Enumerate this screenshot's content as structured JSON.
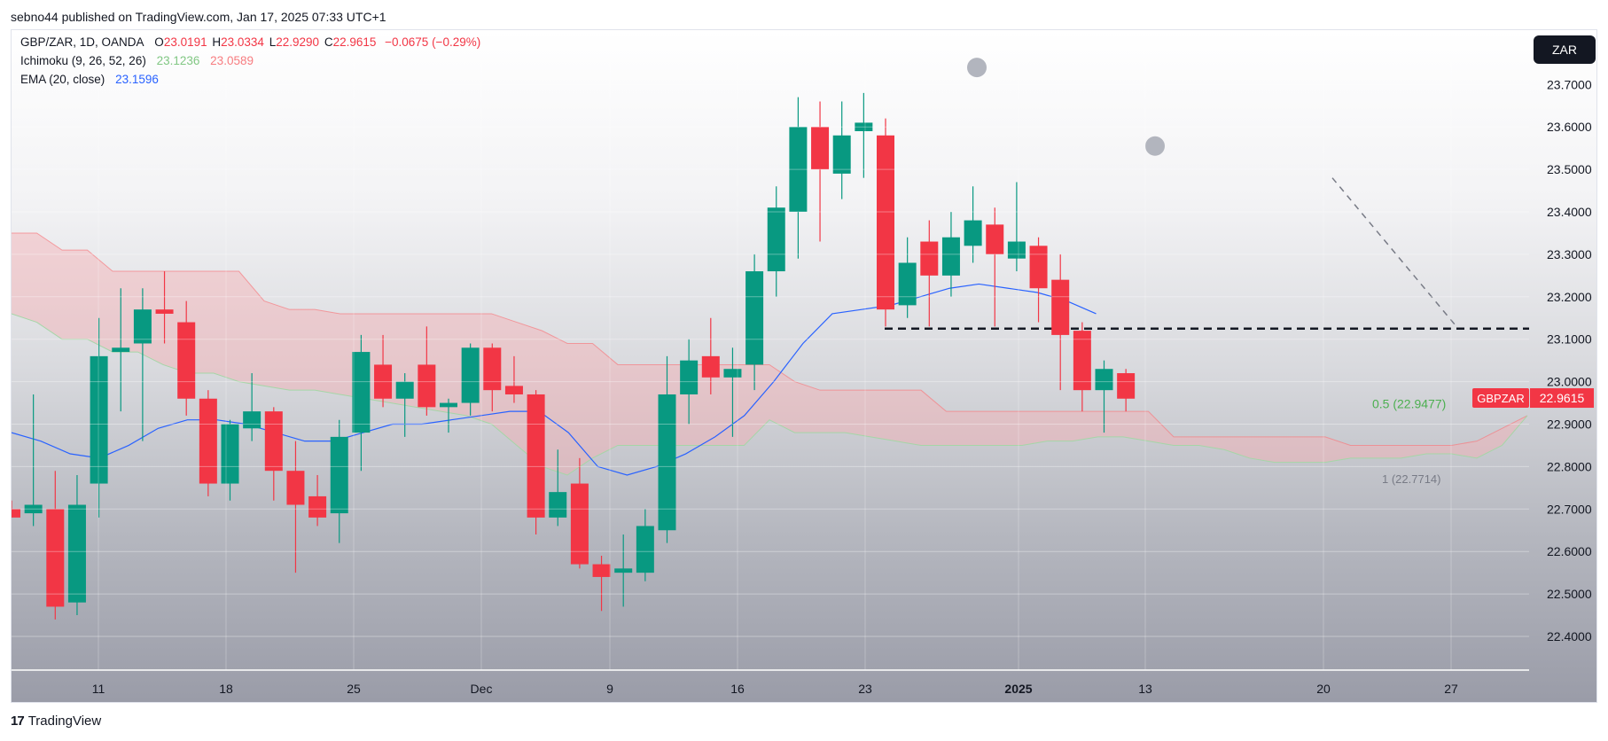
{
  "caption": "sebno44 published on TradingView.com, Jan 17, 2025 07:33 UTC+1",
  "legend": {
    "symbol": "GBP/ZAR, 1D, OANDA",
    "o_label": "O",
    "o_value": "23.0191",
    "h_label": "H",
    "h_value": "23.0334",
    "l_label": "L",
    "l_value": "22.9290",
    "c_label": "C",
    "c_value": "22.9615",
    "change": "−0.0675 (−0.29%)",
    "ichimoku_label": "Ichimoku (9, 26, 52, 26)",
    "ichimoku_v1": "23.1236",
    "ichimoku_v2": "23.0589",
    "ema_label": "EMA (20, close)",
    "ema_value": "23.1596"
  },
  "currency_button": "ZAR",
  "footer": {
    "logo": "17",
    "brand": "TradingView"
  },
  "colors": {
    "up": "#089981",
    "down": "#f23645",
    "ema": "#2962ff",
    "cloud_red": "#f7b0b4",
    "cloud_green": "#a5d6a7"
  },
  "chart_data": {
    "type": "candlestick",
    "y_ticks": [
      "22.4000",
      "22.5000",
      "22.6000",
      "22.7000",
      "22.8000",
      "22.9000",
      "23.0000",
      "23.1000",
      "23.2000",
      "23.3000",
      "23.4000",
      "23.5000",
      "23.6000",
      "23.7000"
    ],
    "ylim": [
      22.32,
      23.78
    ],
    "x_ticks": [
      {
        "label": "11",
        "bold": false
      },
      {
        "label": "18",
        "bold": false
      },
      {
        "label": "25",
        "bold": false
      },
      {
        "label": "Dec",
        "bold": false
      },
      {
        "label": "9",
        "bold": false
      },
      {
        "label": "16",
        "bold": false
      },
      {
        "label": "23",
        "bold": false
      },
      {
        "label": "2025",
        "bold": true
      },
      {
        "label": "13",
        "bold": false
      },
      {
        "label": "20",
        "bold": false
      },
      {
        "label": "27",
        "bold": false
      }
    ],
    "candles": [
      {
        "o": 22.7,
        "h": 22.72,
        "l": 22.68,
        "c": 22.68
      },
      {
        "o": 22.69,
        "h": 22.97,
        "l": 22.66,
        "c": 22.71
      },
      {
        "o": 22.7,
        "h": 22.79,
        "l": 22.44,
        "c": 22.47
      },
      {
        "o": 22.48,
        "h": 22.78,
        "l": 22.45,
        "c": 22.71
      },
      {
        "o": 22.76,
        "h": 23.15,
        "l": 22.68,
        "c": 23.06
      },
      {
        "o": 23.07,
        "h": 23.22,
        "l": 22.93,
        "c": 23.08
      },
      {
        "o": 23.09,
        "h": 23.22,
        "l": 22.86,
        "c": 23.17
      },
      {
        "o": 23.17,
        "h": 23.26,
        "l": 23.09,
        "c": 23.16
      },
      {
        "o": 23.14,
        "h": 23.19,
        "l": 22.92,
        "c": 22.96
      },
      {
        "o": 22.96,
        "h": 22.98,
        "l": 22.73,
        "c": 22.76
      },
      {
        "o": 22.76,
        "h": 22.91,
        "l": 22.72,
        "c": 22.9
      },
      {
        "o": 22.89,
        "h": 23.02,
        "l": 22.86,
        "c": 22.93
      },
      {
        "o": 22.93,
        "h": 22.94,
        "l": 22.72,
        "c": 22.79
      },
      {
        "o": 22.79,
        "h": 22.86,
        "l": 22.55,
        "c": 22.71
      },
      {
        "o": 22.73,
        "h": 22.78,
        "l": 22.66,
        "c": 22.68
      },
      {
        "o": 22.69,
        "h": 22.91,
        "l": 22.62,
        "c": 22.87
      },
      {
        "o": 22.88,
        "h": 23.11,
        "l": 22.79,
        "c": 23.07
      },
      {
        "o": 23.04,
        "h": 23.11,
        "l": 22.94,
        "c": 22.96
      },
      {
        "o": 22.96,
        "h": 23.02,
        "l": 22.87,
        "c": 23.0
      },
      {
        "o": 23.04,
        "h": 23.13,
        "l": 22.92,
        "c": 22.94
      },
      {
        "o": 22.94,
        "h": 22.96,
        "l": 22.88,
        "c": 22.95
      },
      {
        "o": 22.95,
        "h": 23.09,
        "l": 22.92,
        "c": 23.08
      },
      {
        "o": 23.08,
        "h": 23.09,
        "l": 22.93,
        "c": 22.98
      },
      {
        "o": 22.99,
        "h": 23.06,
        "l": 22.95,
        "c": 22.97
      },
      {
        "o": 22.97,
        "h": 22.98,
        "l": 22.64,
        "c": 22.68
      },
      {
        "o": 22.68,
        "h": 22.84,
        "l": 22.66,
        "c": 22.74
      },
      {
        "o": 22.76,
        "h": 22.82,
        "l": 22.56,
        "c": 22.57
      },
      {
        "o": 22.57,
        "h": 22.59,
        "l": 22.46,
        "c": 22.54
      },
      {
        "o": 22.55,
        "h": 22.64,
        "l": 22.47,
        "c": 22.56
      },
      {
        "o": 22.55,
        "h": 22.7,
        "l": 22.53,
        "c": 22.66
      },
      {
        "o": 22.65,
        "h": 23.06,
        "l": 22.62,
        "c": 22.97
      },
      {
        "o": 22.97,
        "h": 23.1,
        "l": 22.9,
        "c": 23.05
      },
      {
        "o": 23.06,
        "h": 23.15,
        "l": 22.97,
        "c": 23.01
      },
      {
        "o": 23.01,
        "h": 23.08,
        "l": 22.87,
        "c": 23.03
      },
      {
        "o": 23.04,
        "h": 23.3,
        "l": 22.98,
        "c": 23.26
      },
      {
        "o": 23.26,
        "h": 23.46,
        "l": 23.2,
        "c": 23.41
      },
      {
        "o": 23.4,
        "h": 23.67,
        "l": 23.29,
        "c": 23.6
      },
      {
        "o": 23.6,
        "h": 23.66,
        "l": 23.33,
        "c": 23.5
      },
      {
        "o": 23.49,
        "h": 23.66,
        "l": 23.43,
        "c": 23.58
      },
      {
        "o": 23.59,
        "h": 23.68,
        "l": 23.48,
        "c": 23.61
      },
      {
        "o": 23.58,
        "h": 23.62,
        "l": 23.13,
        "c": 23.17
      },
      {
        "o": 23.18,
        "h": 23.34,
        "l": 23.15,
        "c": 23.28
      },
      {
        "o": 23.33,
        "h": 23.38,
        "l": 23.13,
        "c": 23.25
      },
      {
        "o": 23.25,
        "h": 23.4,
        "l": 23.2,
        "c": 23.34
      },
      {
        "o": 23.32,
        "h": 23.46,
        "l": 23.28,
        "c": 23.38
      },
      {
        "o": 23.37,
        "h": 23.41,
        "l": 23.13,
        "c": 23.3
      },
      {
        "o": 23.29,
        "h": 23.47,
        "l": 23.26,
        "c": 23.33
      },
      {
        "o": 23.32,
        "h": 23.34,
        "l": 23.14,
        "c": 23.22
      },
      {
        "o": 23.24,
        "h": 23.3,
        "l": 22.98,
        "c": 23.11
      },
      {
        "o": 23.12,
        "h": 23.14,
        "l": 22.93,
        "c": 22.98
      },
      {
        "o": 22.98,
        "h": 23.05,
        "l": 22.88,
        "c": 23.03
      },
      {
        "o": 23.02,
        "h": 23.03,
        "l": 22.93,
        "c": 22.96
      }
    ],
    "ema": [
      22.88,
      22.86,
      22.83,
      22.82,
      22.85,
      22.89,
      22.91,
      22.91,
      22.9,
      22.88,
      22.86,
      22.86,
      22.88,
      22.9,
      22.9,
      22.91,
      22.92,
      22.93,
      22.93,
      22.88,
      22.8,
      22.78,
      22.8,
      22.83,
      22.87,
      22.92,
      23.0,
      23.09,
      23.16,
      23.17,
      23.18,
      23.2,
      23.22,
      23.23,
      23.22,
      23.21,
      23.19,
      23.16
    ],
    "cloud_upper": [
      23.35,
      23.35,
      23.31,
      23.31,
      23.26,
      23.26,
      23.26,
      23.26,
      23.26,
      23.26,
      23.19,
      23.17,
      23.17,
      23.16,
      23.16,
      23.16,
      23.16,
      23.16,
      23.16,
      23.16,
      23.14,
      23.12,
      23.09,
      23.09,
      23.04,
      23.04,
      23.04,
      23.04,
      23.04,
      23.04,
      23.04,
      23.0,
      22.98,
      22.98,
      22.98,
      22.98,
      22.98,
      22.93,
      22.93,
      22.93,
      22.93,
      22.93,
      22.93,
      22.93,
      22.93,
      22.93,
      22.87,
      22.87,
      22.87,
      22.87,
      22.87,
      22.87,
      22.87,
      22.85,
      22.85,
      22.85,
      22.85,
      22.85,
      22.86,
      22.89,
      22.92
    ],
    "cloud_lower": [
      23.16,
      23.14,
      23.1,
      23.1,
      23.07,
      23.07,
      23.04,
      23.02,
      23.02,
      23.0,
      22.99,
      22.98,
      22.98,
      22.97,
      22.96,
      22.95,
      22.94,
      22.93,
      22.92,
      22.9,
      22.85,
      22.8,
      22.78,
      22.82,
      22.85,
      22.85,
      22.85,
      22.85,
      22.85,
      22.85,
      22.91,
      22.88,
      22.88,
      22.88,
      22.87,
      22.86,
      22.85,
      22.85,
      22.85,
      22.85,
      22.85,
      22.86,
      22.86,
      22.87,
      22.87,
      22.86,
      22.85,
      22.85,
      22.84,
      22.82,
      22.81,
      22.81,
      22.81,
      22.82,
      22.82,
      22.82,
      22.83,
      22.83,
      22.82,
      22.85,
      22.92
    ],
    "horizontal_line": 23.125,
    "fib_levels": [
      {
        "label": "0.5 (22.9477)",
        "value": 22.9477
      },
      {
        "label": "1 (22.7714)",
        "value": 22.7714
      }
    ],
    "price_label": {
      "symbol": "GBPZAR",
      "value": "22.9615"
    },
    "markers": [
      {
        "value": 23.74
      },
      {
        "value": 23.555
      }
    ],
    "trend_line": {
      "from": 23.48,
      "to": 23.13
    }
  }
}
